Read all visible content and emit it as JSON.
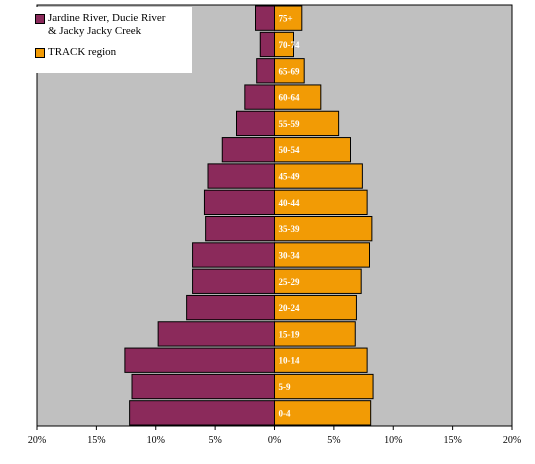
{
  "chart_data": {
    "type": "bar",
    "orientation": "horizontal-population-pyramid",
    "categories": [
      "0-4",
      "5-9",
      "10-14",
      "15-19",
      "20-24",
      "25-29",
      "30-34",
      "35-39",
      "40-44",
      "45-49",
      "50-54",
      "55-59",
      "60-64",
      "65-69",
      "70-74",
      "75+"
    ],
    "series": [
      {
        "name": "Jardine River, Ducie River\n& Jacky Jacky Creek",
        "side": "left",
        "values": [
          12.2,
          12.0,
          12.6,
          9.8,
          7.4,
          6.9,
          6.9,
          5.8,
          5.9,
          5.6,
          4.4,
          3.2,
          2.5,
          1.5,
          1.2,
          1.6
        ]
      },
      {
        "name": "TRACK region",
        "side": "right",
        "values": [
          8.1,
          8.3,
          7.8,
          6.8,
          6.9,
          7.3,
          8.0,
          8.2,
          7.8,
          7.4,
          6.4,
          5.4,
          3.9,
          2.5,
          1.6,
          2.3
        ]
      }
    ],
    "x_ticks": [
      "20%",
      "15%",
      "10%",
      "5%",
      "0%",
      "5%",
      "10%",
      "15%",
      "20%"
    ],
    "xlim": [
      -20,
      20
    ],
    "grid": false,
    "legend": "top-left",
    "colors": {
      "left": "#8B2A5B",
      "right": "#F29B05",
      "plot_bg": "#C0C0C0",
      "category_label": "#FFFFFF"
    }
  }
}
